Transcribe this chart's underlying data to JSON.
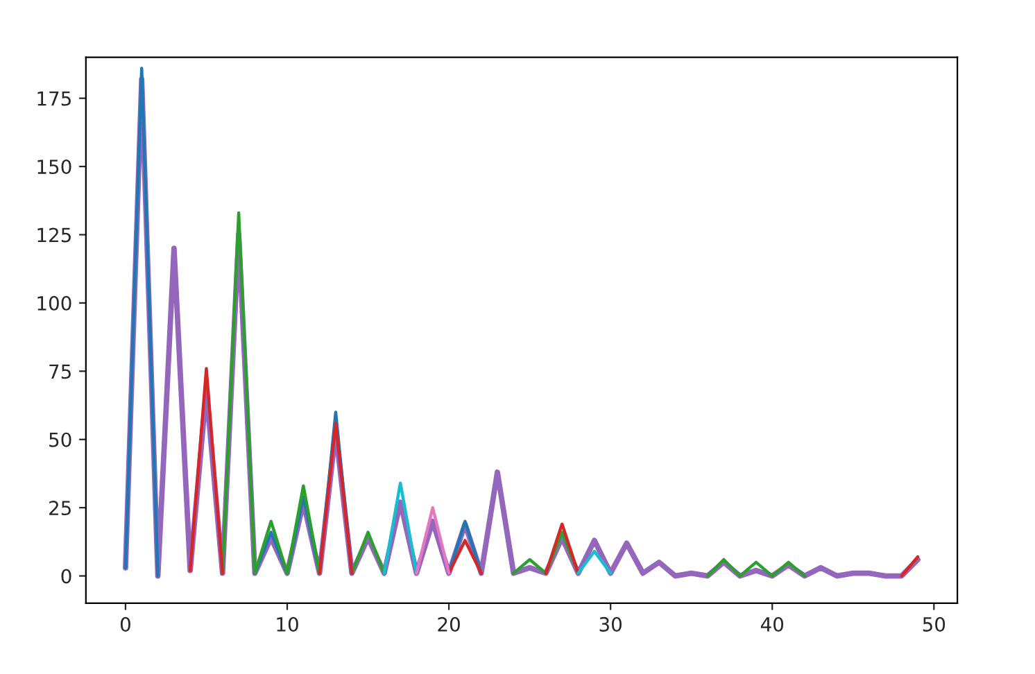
{
  "chart_data": {
    "type": "line",
    "x": [
      0,
      1,
      2,
      3,
      4,
      5,
      6,
      7,
      8,
      9,
      10,
      11,
      12,
      13,
      14,
      15,
      16,
      17,
      18,
      19,
      20,
      21,
      22,
      23,
      24,
      25,
      26,
      27,
      28,
      29,
      30,
      31,
      32,
      33,
      34,
      35,
      36,
      37,
      38,
      39,
      40,
      41,
      42,
      43,
      44,
      45,
      46,
      47,
      48,
      49
    ],
    "series": [
      {
        "color": "#9467bd",
        "values": [
          3,
          182,
          0,
          120,
          2,
          68,
          1,
          125,
          1,
          14,
          1,
          27,
          1,
          53,
          1,
          14,
          1,
          27,
          1,
          20,
          1,
          19,
          1,
          38,
          1,
          3,
          1,
          14,
          1,
          13,
          1,
          12,
          1,
          5,
          0,
          1,
          0,
          5,
          0,
          2,
          0,
          4,
          0,
          3,
          0,
          1,
          1,
          0,
          0,
          6
        ]
      },
      {
        "color": "#1f77b4",
        "values": [
          3,
          186,
          0,
          null,
          null,
          null,
          null,
          null,
          1,
          16,
          1,
          29,
          1,
          60,
          1,
          null,
          null,
          null,
          null,
          null,
          1,
          20,
          1,
          null,
          null,
          null,
          null,
          null,
          null,
          null,
          null,
          null,
          null,
          null,
          null,
          null,
          null,
          null,
          null,
          null,
          null,
          null,
          null,
          null,
          null,
          null,
          null,
          null,
          null,
          null
        ]
      },
      {
        "color": "#2ca02c",
        "values": [
          null,
          null,
          null,
          null,
          null,
          null,
          1,
          133,
          1,
          20,
          1,
          33,
          1,
          null,
          1,
          16,
          1,
          null,
          null,
          null,
          null,
          null,
          null,
          null,
          1,
          6,
          1,
          16,
          1,
          null,
          null,
          null,
          null,
          null,
          null,
          null,
          0,
          6,
          0,
          5,
          0,
          5,
          0,
          null,
          null,
          null,
          null,
          null,
          null,
          null
        ]
      },
      {
        "color": "#d62728",
        "values": [
          null,
          null,
          null,
          null,
          2,
          76,
          1,
          null,
          null,
          null,
          null,
          null,
          1,
          56,
          1,
          null,
          null,
          null,
          null,
          null,
          1,
          13,
          1,
          null,
          null,
          null,
          1,
          19,
          1,
          null,
          null,
          null,
          null,
          null,
          null,
          null,
          null,
          null,
          null,
          null,
          null,
          null,
          null,
          null,
          null,
          null,
          null,
          null,
          0,
          7
        ]
      },
      {
        "color": "#17becf",
        "values": [
          null,
          null,
          null,
          null,
          null,
          null,
          null,
          null,
          null,
          null,
          null,
          null,
          null,
          null,
          null,
          null,
          1,
          34,
          1,
          null,
          null,
          null,
          null,
          null,
          null,
          null,
          null,
          null,
          1,
          9,
          1,
          null,
          null,
          null,
          null,
          null,
          null,
          null,
          null,
          null,
          null,
          null,
          null,
          null,
          null,
          null,
          null,
          null,
          null,
          null
        ]
      },
      {
        "color": "#e377c2",
        "values": [
          null,
          null,
          null,
          null,
          null,
          null,
          null,
          null,
          null,
          null,
          null,
          null,
          null,
          null,
          null,
          null,
          null,
          null,
          1,
          25,
          1,
          null,
          null,
          null,
          null,
          null,
          null,
          null,
          null,
          null,
          null,
          null,
          null,
          null,
          null,
          null,
          null,
          null,
          null,
          null,
          null,
          null,
          null,
          null,
          null,
          null,
          null,
          null,
          null,
          null
        ]
      }
    ],
    "xlim": [
      -2.45,
      51.45
    ],
    "ylim": [
      -10,
      190
    ],
    "xticks": [
      0,
      10,
      20,
      30,
      40,
      50
    ],
    "yticks": [
      0,
      25,
      50,
      75,
      100,
      125,
      150,
      175
    ],
    "grid": false,
    "legend": false
  }
}
